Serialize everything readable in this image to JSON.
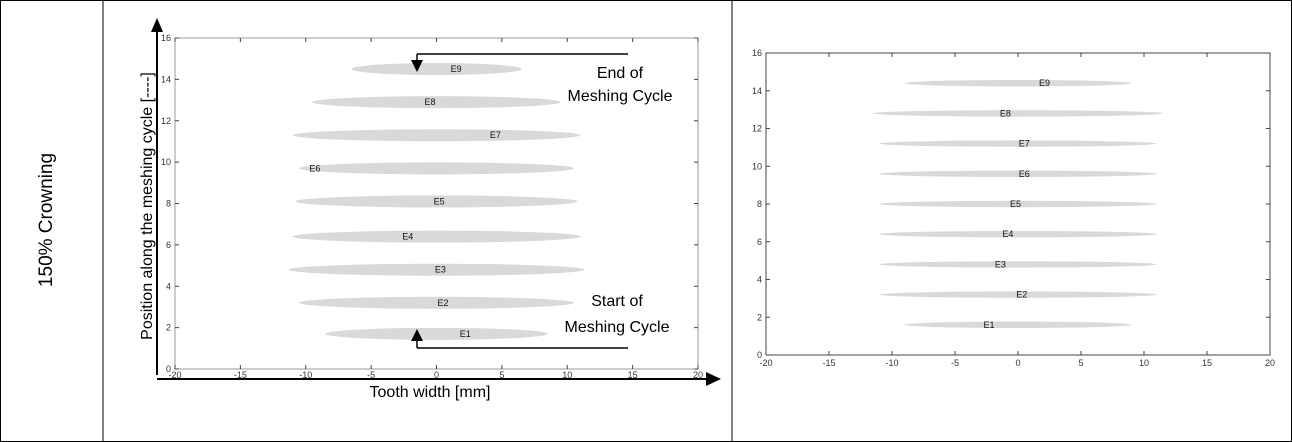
{
  "row_label": "150% Crowning",
  "chart_data": [
    {
      "type": "scatter",
      "title": "",
      "xlabel": "Tooth width [mm]",
      "ylabel": "Position along the meshing cycle [----]",
      "xlim": [
        -20,
        20
      ],
      "ylim": [
        0,
        16
      ],
      "xticks": [
        -20,
        -15,
        -10,
        -5,
        0,
        5,
        10,
        15,
        20
      ],
      "yticks": [
        0,
        2,
        4,
        6,
        8,
        10,
        12,
        14,
        16
      ],
      "grid": false,
      "mark_color": "#d9d9d9",
      "annotations": {
        "end": [
          "End of",
          "Meshing Cycle"
        ],
        "start": [
          "Start of",
          "Meshing Cycle"
        ]
      },
      "ellipses": [
        {
          "label": "E1",
          "y": 1.7,
          "x_min": -8.5,
          "x_max": 8.5,
          "label_x": 2.2
        },
        {
          "label": "E2",
          "y": 3.2,
          "x_min": -10.5,
          "x_max": 10.5,
          "label_x": 0.5
        },
        {
          "label": "E3",
          "y": 4.8,
          "x_min": -11.3,
          "x_max": 11.3,
          "label_x": 0.3
        },
        {
          "label": "E4",
          "y": 6.4,
          "x_min": -11.0,
          "x_max": 11.0,
          "label_x": -2.2
        },
        {
          "label": "E5",
          "y": 8.1,
          "x_min": -10.8,
          "x_max": 10.8,
          "label_x": 0.2
        },
        {
          "label": "E6",
          "y": 9.7,
          "x_min": -10.5,
          "x_max": 10.5,
          "label_x": -9.3
        },
        {
          "label": "E7",
          "y": 11.3,
          "x_min": -11.0,
          "x_max": 11.0,
          "label_x": 4.5
        },
        {
          "label": "E8",
          "y": 12.9,
          "x_min": -9.5,
          "x_max": 9.5,
          "label_x": -0.5
        },
        {
          "label": "E9",
          "y": 14.5,
          "x_min": -6.5,
          "x_max": 6.5,
          "label_x": 1.5
        }
      ]
    },
    {
      "type": "scatter",
      "title": "",
      "xlabel": "",
      "ylabel": "",
      "xlim": [
        -20,
        20
      ],
      "ylim": [
        0,
        16
      ],
      "xticks": [
        -20,
        -15,
        -10,
        -5,
        0,
        5,
        10,
        15,
        20
      ],
      "yticks": [
        0,
        2,
        4,
        6,
        8,
        10,
        12,
        14,
        16
      ],
      "grid": false,
      "mark_color": "#d9d9d9",
      "ellipses": [
        {
          "label": "E1",
          "y": 1.6,
          "x_min": -9.0,
          "x_max": 9.0,
          "label_x": -2.3
        },
        {
          "label": "E2",
          "y": 3.2,
          "x_min": -11.0,
          "x_max": 11.0,
          "label_x": 0.3
        },
        {
          "label": "E3",
          "y": 4.8,
          "x_min": -11.0,
          "x_max": 11.0,
          "label_x": -1.4
        },
        {
          "label": "E4",
          "y": 6.4,
          "x_min": -11.0,
          "x_max": 11.0,
          "label_x": -0.8
        },
        {
          "label": "E5",
          "y": 8.0,
          "x_min": -11.0,
          "x_max": 11.0,
          "label_x": -0.2
        },
        {
          "label": "E6",
          "y": 9.6,
          "x_min": -11.0,
          "x_max": 11.0,
          "label_x": 0.5
        },
        {
          "label": "E7",
          "y": 11.2,
          "x_min": -11.0,
          "x_max": 11.0,
          "label_x": 0.5
        },
        {
          "label": "E8",
          "y": 12.8,
          "x_min": -11.5,
          "x_max": 11.5,
          "label_x": -1.0
        },
        {
          "label": "E9",
          "y": 14.4,
          "x_min": -9.0,
          "x_max": 9.0,
          "label_x": 2.1
        }
      ]
    }
  ]
}
